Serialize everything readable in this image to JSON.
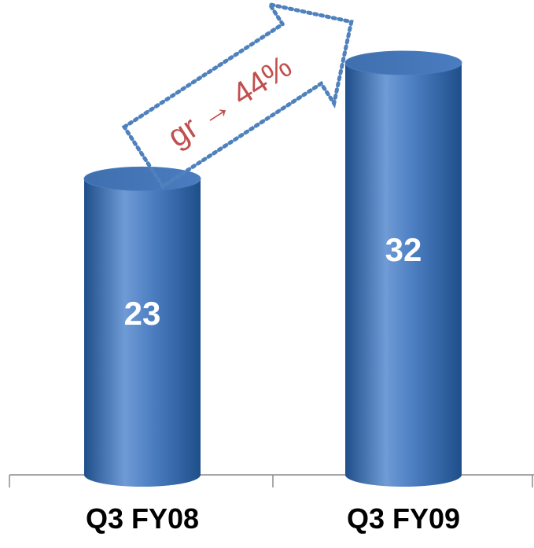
{
  "chart_data": {
    "type": "bar",
    "style": "3d-cylinder",
    "categories": [
      "Q3 FY08",
      "Q3 FY09"
    ],
    "values": [
      23,
      32
    ],
    "value_labels": [
      "23",
      "32"
    ],
    "title": "",
    "xlabel": "",
    "ylabel": "",
    "ylim": [
      0,
      40
    ],
    "grid": false,
    "legend": "none",
    "annotation": {
      "text": "gr → 44%",
      "type": "dotted-arrow",
      "from_category": "Q3 FY08",
      "to_category": "Q3 FY09",
      "color": "#c0504d",
      "border_color": "#4f81bd"
    }
  },
  "colors": {
    "bar_light": "#6f9bd6",
    "bar_mid": "#4a7cc0",
    "bar_dark": "#1f4f8a",
    "bar_top": "#3f6fae",
    "axis": "#8c8c8c",
    "label_text": "#ffffff",
    "category_text": "#000000"
  }
}
